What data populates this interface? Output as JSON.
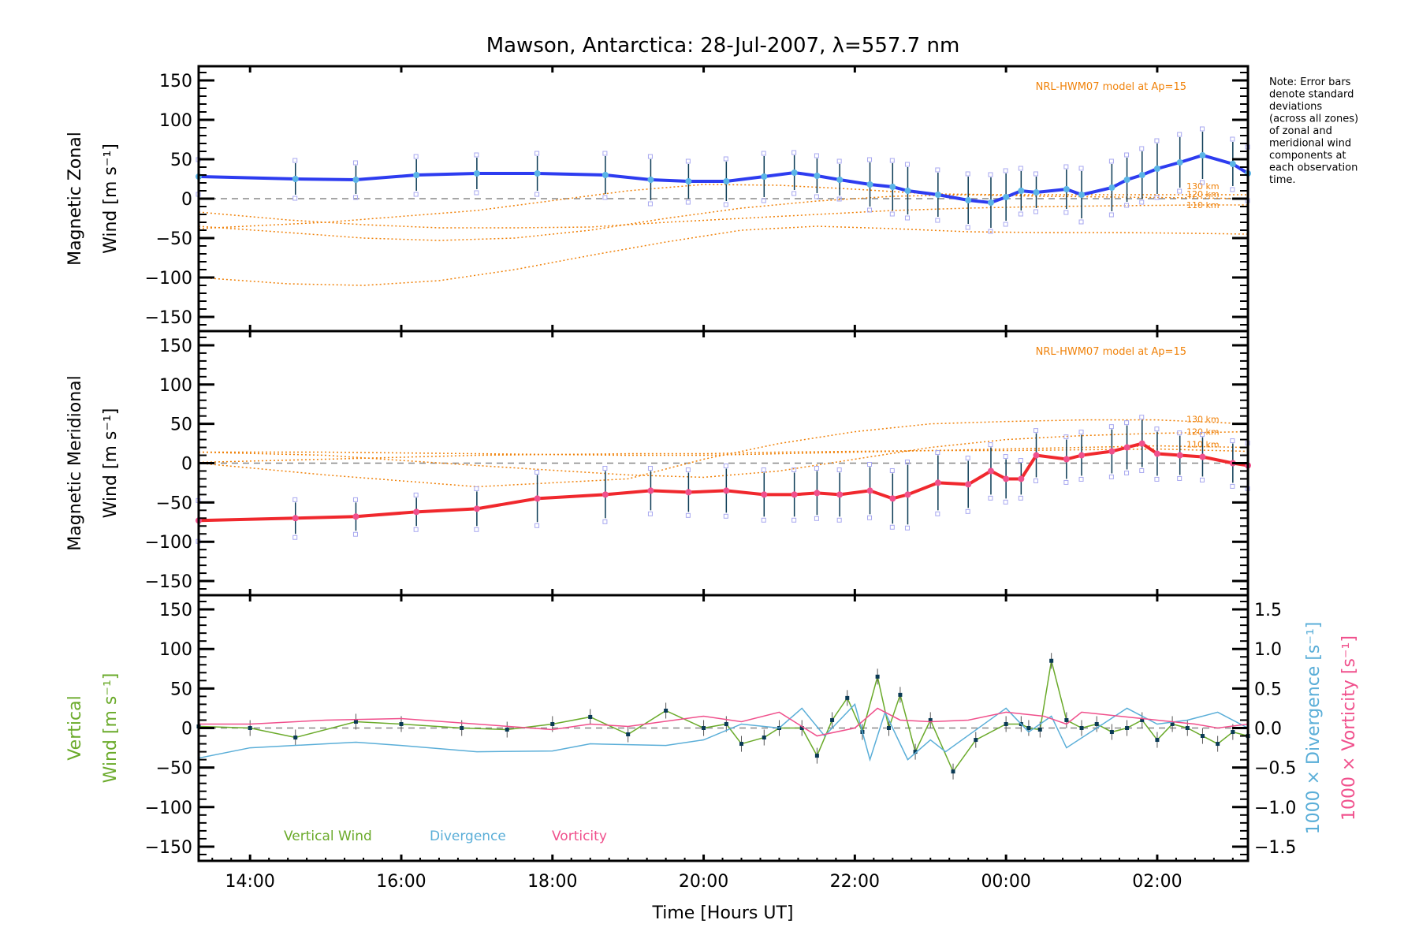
{
  "chart_data": {
    "type": "line",
    "title": "Mawson, Antarctica: 28-Jul-2007, λ=557.7 nm",
    "xlabel": "Time [Hours UT]",
    "x_unit": "hours UT (values > 24 are after midnight)",
    "xlim": [
      13.32,
      27.2
    ],
    "x_ticks": [
      {
        "value": 14,
        "label": "14:00"
      },
      {
        "value": 16,
        "label": "16:00"
      },
      {
        "value": 18,
        "label": "18:00"
      },
      {
        "value": 20,
        "label": "20:00"
      },
      {
        "value": 22,
        "label": "22:00"
      },
      {
        "value": 24,
        "label": "00:00"
      },
      {
        "value": 26,
        "label": "02:00"
      }
    ],
    "note": [
      "Note: Error bars",
      "denote standard",
      "deviations",
      "(across all zones)",
      "of zonal and",
      "meridional wind",
      "components at",
      "each observation",
      "time."
    ],
    "panels": [
      {
        "id": "zonal",
        "ylabel_line1": "Magnetic Zonal",
        "ylabel_line2": "Wind [m s⁻¹]",
        "ylim": [
          -168,
          168
        ],
        "y_ticks": [
          150,
          100,
          50,
          0,
          -50,
          -100,
          -150
        ],
        "y_tick_labels": [
          "150",
          "100",
          "50",
          "0",
          "−50",
          "−100",
          "−150"
        ],
        "model_label": "NRL-HWM07 model at Ap=15",
        "model_series": [
          {
            "name": "130 km",
            "x": [
              13.32,
              14.5,
              15.5,
              16.5,
              17.5,
              18.5,
              19.5,
              20.5,
              21.5,
              22.5,
              23.5,
              24.5,
              25.5,
              26.5,
              27.2
            ],
            "y": [
              -35,
              -43,
              -50,
              -53,
              -50,
              -40,
              -25,
              -12,
              -3,
              3,
              5,
              3,
              2,
              1,
              0
            ]
          },
          {
            "name": "120 km",
            "x": [
              13.32,
              14.5,
              15.5,
              16.5,
              17.5,
              18.5,
              19.5,
              20.5,
              21.5,
              22.5,
              23.5,
              24.5,
              25.5,
              26.5,
              27.2
            ],
            "y": [
              -17,
              -27,
              -33,
              -37,
              -37,
              -36,
              -30,
              -25,
              -20,
              -15,
              -12,
              -10,
              -9,
              -8,
              -8
            ]
          },
          {
            "name": "110 km",
            "x": [
              13.32,
              14.5,
              15.5,
              16.5,
              17.5,
              18.5,
              19.5,
              20.5,
              21.5,
              22.5,
              23.5,
              24.5,
              25.5,
              26.5,
              27.2
            ],
            "y": [
              -100,
              -108,
              -110,
              -104,
              -90,
              -72,
              -55,
              -40,
              -35,
              -38,
              -42,
              -43,
              -43,
              -44,
              -45
            ]
          },
          {
            "name": "model-4",
            "x": [
              13.32,
              15,
              17,
              19,
              20,
              21,
              22,
              23,
              24,
              25,
              26,
              27.2
            ],
            "y": [
              -38,
              -30,
              -15,
              10,
              18,
              17,
              12,
              6,
              5,
              5,
              5,
              5
            ]
          }
        ],
        "model_labels_shown": [
          "130 km",
          "120 km",
          "110 km"
        ],
        "mean_series": {
          "name": "Zonal wind",
          "color": "#2d3cf0",
          "x": [
            13.32,
            14.6,
            15.4,
            16.2,
            17.0,
            17.8,
            18.7,
            19.3,
            19.8,
            20.3,
            20.8,
            21.2,
            21.5,
            21.8,
            22.2,
            22.5,
            22.7,
            23.1,
            23.5,
            23.8,
            24.0,
            24.2,
            24.4,
            24.8,
            25.0,
            25.4,
            25.6,
            25.8,
            26.0,
            26.3,
            26.6,
            27.0,
            27.2
          ],
          "y": [
            28,
            25,
            24,
            30,
            32,
            32,
            30,
            24,
            22,
            22,
            28,
            33,
            29,
            24,
            18,
            15,
            10,
            5,
            -2,
            -5,
            2,
            10,
            8,
            12,
            5,
            14,
            24,
            30,
            38,
            46,
            55,
            44,
            32
          ],
          "err": [
            18,
            20,
            18,
            20,
            20,
            22,
            24,
            26,
            22,
            25,
            26,
            22,
            22,
            20,
            28,
            30,
            30,
            28,
            30,
            32,
            30,
            25,
            20,
            25,
            30,
            30,
            28,
            30,
            32,
            32,
            30,
            28,
            30
          ]
        }
      },
      {
        "id": "meridional",
        "ylabel_line1": "Magnetic Meridional",
        "ylabel_line2": "Wind [m s⁻¹]",
        "ylim": [
          -168,
          168
        ],
        "y_ticks": [
          150,
          100,
          50,
          0,
          -50,
          -100,
          -150
        ],
        "y_tick_labels": [
          "150",
          "100",
          "50",
          "0",
          "−50",
          "−100",
          "−150"
        ],
        "model_label": "NRL-HWM07 model at Ap=15",
        "model_series": [
          {
            "name": "130 km",
            "x": [
              13.32,
              15,
              17,
              19,
              20,
              21,
              22,
              23,
              24,
              25,
              26,
              27.2
            ],
            "y": [
              0,
              -15,
              -30,
              -20,
              5,
              25,
              40,
              50,
              53,
              55,
              55,
              50
            ]
          },
          {
            "name": "120 km",
            "x": [
              13.32,
              15,
              17,
              19,
              20,
              21,
              22,
              23,
              24,
              25,
              26,
              27.2
            ],
            "y": [
              14,
              10,
              -3,
              -15,
              -18,
              -10,
              5,
              20,
              30,
              35,
              38,
              40
            ]
          },
          {
            "name": "110 km",
            "x": [
              13.32,
              15,
              17,
              19,
              20,
              21,
              22,
              23,
              24,
              25,
              26,
              27.2
            ],
            "y": [
              1,
              5,
              10,
              12,
              12,
              14,
              15,
              16,
              16,
              17,
              18,
              15
            ]
          },
          {
            "name": "model-4",
            "x": [
              13.32,
              15,
              17,
              19,
              20,
              21,
              22,
              23,
              24,
              25,
              26,
              27.2
            ],
            "y": [
              14,
              14,
              12,
              10,
              10,
              12,
              14,
              16,
              18,
              20,
              22,
              20
            ]
          }
        ],
        "model_labels_shown": [
          "130 km",
          "120 km",
          "110 km"
        ],
        "mean_series": {
          "name": "Meridional wind",
          "color": "#f0282d",
          "x": [
            13.32,
            14.6,
            15.4,
            16.2,
            17.0,
            17.8,
            18.7,
            19.3,
            19.8,
            20.3,
            20.8,
            21.2,
            21.5,
            21.8,
            22.2,
            22.5,
            22.7,
            23.1,
            23.5,
            23.8,
            24.0,
            24.2,
            24.4,
            24.8,
            25.0,
            25.4,
            25.6,
            25.8,
            26.0,
            26.3,
            26.6,
            27.0,
            27.2
          ],
          "y": [
            -73,
            -70,
            -68,
            -62,
            -58,
            -45,
            -40,
            -35,
            -37,
            -35,
            -40,
            -40,
            -38,
            -40,
            -35,
            -45,
            -40,
            -25,
            -27,
            -10,
            -20,
            -20,
            10,
            5,
            10,
            15,
            20,
            25,
            12,
            10,
            8,
            0,
            -3
          ],
          "err": [
            22,
            20,
            18,
            18,
            22,
            30,
            30,
            25,
            25,
            28,
            28,
            28,
            28,
            28,
            30,
            32,
            38,
            35,
            30,
            30,
            25,
            20,
            28,
            25,
            26,
            28,
            28,
            30,
            28,
            25,
            25,
            25,
            25
          ]
        }
      },
      {
        "id": "vertical",
        "ylabel_line1": "Vertical",
        "ylabel_line2": "Wind [m s⁻¹]",
        "ylim": [
          -168,
          168
        ],
        "y_ticks": [
          150,
          100,
          50,
          0,
          -50,
          -100,
          -150
        ],
        "y_tick_labels": [
          "150",
          "100",
          "50",
          "0",
          "−50",
          "−100",
          "−150"
        ],
        "right_ylim": [
          -1.68,
          1.68
        ],
        "right_y_ticks": [
          1.5,
          1.0,
          0.5,
          0.0,
          -0.5,
          -1.0,
          -1.5
        ],
        "right_y_tick_labels": [
          "1.5",
          "1.0",
          "0.5",
          "0.0",
          "−0.5",
          "−1.0",
          "−1.5"
        ],
        "right_ylabel_divergence": "1000 × Divergence [s⁻¹]",
        "right_ylabel_vorticity": "1000 × Vorticity [s⁻¹]",
        "legend": [
          {
            "label": "Vertical Wind",
            "color": "#6aaa2a"
          },
          {
            "label": "Divergence",
            "color": "#5aaed8"
          },
          {
            "label": "Vorticity",
            "color": "#f0508c"
          }
        ],
        "series": [
          {
            "name": "Vertical Wind",
            "axis": "left",
            "color": "#6aaa2a",
            "x": [
              13.32,
              14.0,
              14.6,
              15.4,
              16.0,
              16.8,
              17.4,
              18.0,
              18.5,
              19.0,
              19.5,
              20.0,
              20.3,
              20.5,
              20.8,
              21.0,
              21.3,
              21.5,
              21.7,
              21.9,
              22.1,
              22.3,
              22.45,
              22.6,
              22.8,
              23.0,
              23.3,
              23.6,
              24.0,
              24.2,
              24.3,
              24.45,
              24.6,
              24.8,
              25.0,
              25.2,
              25.4,
              25.6,
              25.8,
              26.0,
              26.2,
              26.4,
              26.6,
              26.8,
              27.0,
              27.2
            ],
            "y": [
              2,
              0,
              -12,
              8,
              5,
              0,
              -2,
              5,
              14,
              -8,
              22,
              0,
              5,
              -20,
              -12,
              0,
              0,
              -35,
              10,
              38,
              -5,
              65,
              0,
              42,
              -30,
              10,
              -55,
              -15,
              5,
              5,
              0,
              -2,
              85,
              10,
              0,
              5,
              -5,
              0,
              10,
              -15,
              5,
              0,
              -10,
              -20,
              -5,
              -10
            ]
          },
          {
            "name": "Divergence",
            "axis": "right",
            "color": "#5aaed8",
            "x": [
              13.32,
              14.0,
              15.4,
              16.0,
              17.0,
              18.0,
              18.5,
              19.5,
              20.0,
              20.5,
              21.0,
              21.3,
              21.6,
              22.0,
              22.2,
              22.4,
              22.7,
              23.0,
              23.2,
              24.0,
              24.3,
              24.6,
              24.8,
              25.2,
              25.6,
              26.0,
              26.4,
              26.8,
              27.2
            ],
            "y": [
              -0.38,
              -0.25,
              -0.18,
              -0.22,
              -0.3,
              -0.29,
              -0.2,
              -0.22,
              -0.15,
              0.05,
              0.0,
              0.25,
              -0.1,
              0.3,
              -0.4,
              0.2,
              -0.4,
              -0.15,
              -0.3,
              0.25,
              -0.05,
              0.15,
              -0.25,
              0.0,
              0.25,
              0.05,
              0.1,
              0.2,
              0.0
            ]
          },
          {
            "name": "Vorticity",
            "axis": "right",
            "color": "#f0508c",
            "x": [
              13.32,
              14.0,
              15.0,
              16.0,
              17.0,
              18.0,
              18.5,
              19.0,
              20.0,
              20.5,
              21.0,
              21.5,
              22.0,
              22.3,
              22.6,
              23.0,
              23.5,
              24.0,
              24.5,
              24.8,
              25.0,
              25.5,
              26.0,
              26.5,
              26.8,
              27.2
            ],
            "y": [
              0.05,
              0.05,
              0.1,
              0.12,
              0.05,
              -0.02,
              0.05,
              0.02,
              0.15,
              0.08,
              0.2,
              -0.1,
              0.0,
              0.25,
              0.1,
              0.08,
              0.1,
              0.2,
              0.15,
              0.05,
              0.2,
              0.15,
              0.1,
              0.05,
              0.0,
              0.05
            ]
          }
        ]
      }
    ]
  }
}
